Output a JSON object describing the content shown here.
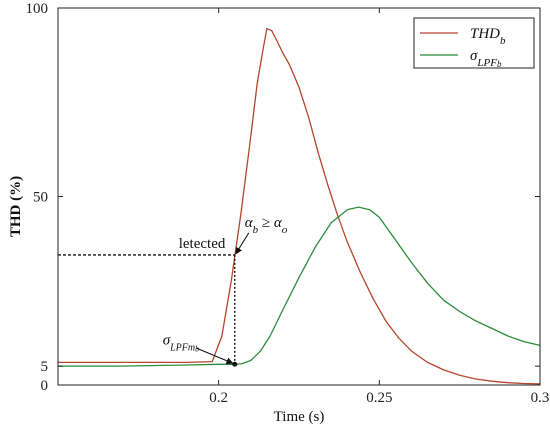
{
  "chart_data": {
    "type": "line",
    "xlabel": "Time (s)",
    "ylabel": "THD (%)",
    "xlim": [
      0.15,
      0.3
    ],
    "ylim": [
      0,
      100
    ],
    "xticks": [
      {
        "value": 0.2,
        "label": "0.2"
      },
      {
        "value": 0.25,
        "label": "0.25"
      },
      {
        "value": 0.3,
        "label": "0.3"
      }
    ],
    "yticks": [
      {
        "value": 0,
        "label": "0"
      },
      {
        "value": 5,
        "label": "5"
      },
      {
        "value": 50,
        "label": "50"
      },
      {
        "value": 100,
        "label": "100"
      }
    ],
    "grid": false,
    "legend_position": "top-right",
    "series": [
      {
        "name": "THD_b",
        "legend_main": "THD",
        "legend_sub": "b",
        "color": "#b5452c",
        "x": [
          0.15,
          0.17,
          0.19,
          0.198,
          0.201,
          0.204,
          0.207,
          0.21,
          0.212,
          0.214,
          0.215,
          0.2165,
          0.218,
          0.22,
          0.222,
          0.225,
          0.228,
          0.231,
          0.234,
          0.237,
          0.24,
          0.244,
          0.248,
          0.252,
          0.256,
          0.26,
          0.265,
          0.27,
          0.275,
          0.28,
          0.285,
          0.29,
          0.295,
          0.3
        ],
        "y": [
          6,
          6,
          6,
          6.2,
          13,
          28,
          46,
          66,
          80,
          90,
          94.5,
          94,
          91.5,
          88,
          85,
          79,
          71,
          61.5,
          53,
          45,
          38,
          30,
          23,
          17,
          12.5,
          9,
          6,
          4,
          2.6,
          1.6,
          1.0,
          0.6,
          0.4,
          0.3
        ]
      },
      {
        "name": "σ_LPF_b",
        "legend_main": "σ",
        "legend_sub": "LPF",
        "legend_subsub": "b",
        "color": "#2e8b3e",
        "x": [
          0.15,
          0.17,
          0.19,
          0.2,
          0.204,
          0.207,
          0.21,
          0.213,
          0.216,
          0.22,
          0.225,
          0.23,
          0.235,
          0.24,
          0.2435,
          0.247,
          0.25,
          0.255,
          0.26,
          0.265,
          0.27,
          0.275,
          0.28,
          0.285,
          0.29,
          0.295,
          0.3
        ],
        "y": [
          5,
          5,
          5.3,
          5.5,
          5.5,
          5.6,
          6.5,
          9,
          13,
          20,
          28.5,
          36.5,
          43,
          46.5,
          47.2,
          46.5,
          44.5,
          38.5,
          32.5,
          27,
          22.5,
          19.5,
          17,
          15,
          13,
          11.5,
          10.5
        ]
      }
    ],
    "annotations": {
      "detected_label": "letected",
      "alpha_label_a": "α",
      "alpha_label_a_sub": "b",
      "alpha_label_ge": " ≥ ",
      "alpha_label_b": "α",
      "alpha_label_b_sub": "o",
      "sigma_label": "σ",
      "sigma_label_sub": "LPFm",
      "sigma_label_subsub": "b",
      "detect_point": {
        "x": 0.205,
        "y": 34.5
      },
      "min_point": {
        "x": 0.205,
        "y": 5.5
      }
    }
  }
}
